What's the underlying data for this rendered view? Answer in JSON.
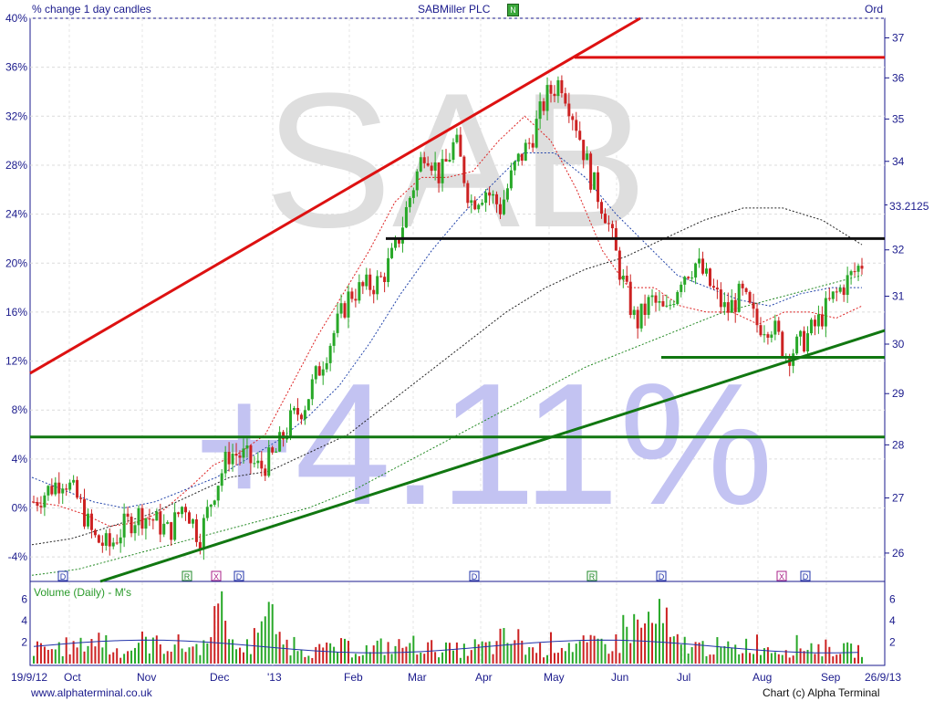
{
  "header": {
    "left_label": "% change 1 day candles",
    "title": "SABMiller PLC",
    "title_badge": "N",
    "right_label": "Ord"
  },
  "watermark": {
    "ticker": "SAB",
    "change": "+4.11%"
  },
  "footer": {
    "website": "www.alphaterminal.co.uk",
    "credit": "Chart (c) Alpha Terminal"
  },
  "chart_data": {
    "type": "candlestick",
    "title": "SABMiller PLC",
    "subtitle": "% change 1 day candles",
    "x_range": [
      "19/9/12",
      "26/9/13"
    ],
    "x_tick_labels": [
      "19/9/12",
      "Oct",
      "Nov",
      "Dec",
      "'13",
      "Feb",
      "Mar",
      "Apr",
      "May",
      "Jun",
      "Jul",
      "Aug",
      "Sep",
      "26/9/13"
    ],
    "y_left_ticks": [
      "40%",
      "36%",
      "32%",
      "28%",
      "24%",
      "20%",
      "16%",
      "12%",
      "8%",
      "4%",
      "0%",
      "-4%"
    ],
    "y_left_range": [
      -6,
      40
    ],
    "y_right_ticks": [
      "37",
      "36",
      "35",
      "34",
      "33",
      "32",
      "31",
      "30",
      "29",
      "28",
      "27",
      "26"
    ],
    "y_right_range": [
      25.5,
      37.5
    ],
    "y_right_scale": "log",
    "last_price": "33.2125",
    "close_series_pct": [
      0.5,
      1.5,
      2.5,
      0.5,
      -2.5,
      -3.2,
      -1.5,
      -0.5,
      -1,
      -2,
      0.5,
      -2.5,
      1.5,
      4.5,
      4.2,
      3.2,
      4.3,
      7,
      8.5,
      11.5,
      14.5,
      17.5,
      18,
      18.5,
      21,
      25.5,
      29.5,
      27,
      30,
      25,
      26,
      24.5,
      28,
      30,
      33.5,
      35,
      31.5,
      27,
      24,
      19,
      15,
      17,
      15.8,
      19,
      20,
      18,
      16,
      17.5,
      15,
      15,
      12.5,
      13.5,
      15,
      17,
      18.5,
      20
    ],
    "series": [
      {
        "name": "close",
        "color": "#cc2222"
      },
      {
        "name": "ma20",
        "color": "#dd2222",
        "style": "dotted"
      },
      {
        "name": "ma50",
        "color": "#2244aa",
        "style": "dotted"
      },
      {
        "name": "ma100",
        "color": "#222222",
        "style": "dotted"
      },
      {
        "name": "ma200",
        "color": "#228822",
        "style": "dotted"
      }
    ],
    "ma20_pct": [
      0.5,
      0.2,
      -0.5,
      -1.5,
      -1.2,
      -0.3,
      1.5,
      3.5,
      4.5,
      6,
      10,
      14,
      17.5,
      21,
      25,
      27,
      27,
      27.5,
      30,
      32,
      30,
      26,
      21,
      18,
      18,
      16.5,
      16,
      16,
      15,
      16,
      16,
      15.5,
      16.5
    ],
    "ma50_pct": [
      2.5,
      1.5,
      0.5,
      0,
      0.5,
      1.5,
      2.5,
      4,
      5.5,
      7.5,
      10,
      13.5,
      17.5,
      21,
      24,
      26.5,
      29,
      29,
      27,
      24,
      21.5,
      19,
      18,
      17,
      16.5,
      17.5,
      18,
      18
    ],
    "ma100_pct": [
      -3,
      -2.5,
      -1.5,
      -0.5,
      1,
      2.5,
      3,
      4.5,
      6,
      8.5,
      11,
      13.5,
      16,
      18,
      19.5,
      20.5,
      22,
      23.5,
      24.5,
      24.5,
      23.5,
      21.5
    ],
    "ma200_pct": [
      -5.5,
      -5,
      -4,
      -3,
      -2,
      -1,
      0,
      1.5,
      3.5,
      5.5,
      7.5,
      9.5,
      11.5,
      13,
      14.5,
      16,
      17,
      18,
      19
    ],
    "trendlines": [
      {
        "color": "#dd1111",
        "from": [
          "19/9/12",
          11
        ],
        "to": [
          "May",
          36.5
        ]
      },
      {
        "color": "#dd1111",
        "level": 36.8
      },
      {
        "color": "#111111",
        "level": 22
      },
      {
        "color": "#117711",
        "level": 5.8
      },
      {
        "color": "#117711",
        "level": 12.3
      },
      {
        "color": "#117711",
        "from": [
          "Oct",
          -6
        ],
        "to": [
          "26/9/13",
          14.5
        ]
      }
    ],
    "event_markers": [
      "D",
      "R",
      "X",
      "D",
      "D",
      "R",
      "D",
      "X",
      "D"
    ],
    "volume": {
      "title": "Volume (Daily) - M's",
      "y_ticks": [
        "6",
        "4",
        "2"
      ],
      "y_range": [
        0,
        7
      ],
      "avg_line_color": "#2233aa",
      "peaks": [
        2.2,
        2.5,
        3.5,
        2,
        3.2,
        2.8,
        2.5,
        7,
        2.5,
        6.5,
        3,
        2,
        2.4,
        2.1,
        2.5,
        2.8,
        2.3,
        2,
        2.5,
        3.5,
        2.2,
        3,
        2.7,
        3,
        5.5,
        6.2,
        3,
        2.5,
        2.2,
        3,
        2.2,
        2.7,
        2.3,
        2
      ]
    }
  }
}
